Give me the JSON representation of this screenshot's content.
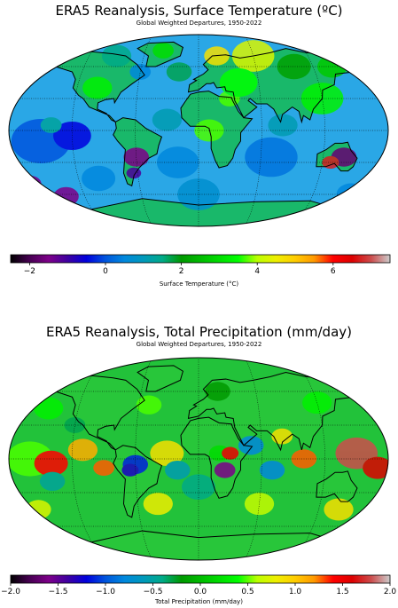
{
  "panels": [
    {
      "title": "ERA5 Reanalysis, Surface Temperature (ºC)",
      "subtitle": "Global Weighted Departures, 1950-2022",
      "colorbar_label": "Surface Temperature (°C)",
      "colorbar_range": [
        -2.5,
        7.5
      ],
      "colorbar_ticks": [
        -2,
        0,
        2,
        4,
        6
      ],
      "tick_labels": [
        "−2",
        "0",
        "2",
        "4",
        "6"
      ],
      "colormap": "nipy_spectral"
    },
    {
      "title": "ERA5 Reanalysis, Total Precipitation (mm/day)",
      "subtitle": "Global Weighted Departures, 1950-2022",
      "colorbar_label": "Total Precipitation (mm/day)",
      "colorbar_range": [
        -2.0,
        2.0
      ],
      "colorbar_ticks": [
        -2.0,
        -1.5,
        -1.0,
        -0.5,
        0.0,
        0.5,
        1.0,
        1.5,
        2.0
      ],
      "tick_labels": [
        "−2.0",
        "−1.5",
        "−1.0",
        "−0.5",
        "0.0",
        "0.5",
        "1.0",
        "1.5",
        "2.0"
      ],
      "colormap": "nipy_spectral"
    }
  ],
  "map": {
    "projection": "Robinson",
    "graticule": "dotted",
    "land_outline_color": "#000000",
    "colors": {
      "ocean_temp": "#2aa7e6",
      "ocean_precip": "#22c23a",
      "land_temp": "#19b86a",
      "land_precip": "#28c63a"
    }
  }
}
